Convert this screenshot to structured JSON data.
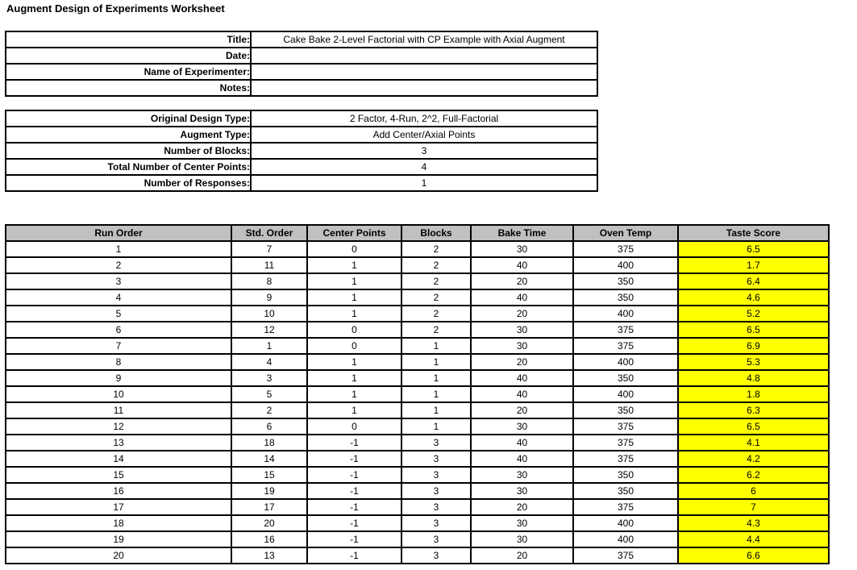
{
  "page_title": "Augment Design of Experiments Worksheet",
  "colors": {
    "header_bg": "#C0C0C0",
    "response_bg": "#FFFF00",
    "border": "#000000",
    "background": "#FFFFFF"
  },
  "info_table": {
    "rows": [
      {
        "label": "Title:",
        "value": "Cake Bake 2-Level Factorial with CP Example with Axial Augment"
      },
      {
        "label": "Date:",
        "value": ""
      },
      {
        "label": "Name of Experimenter:",
        "value": ""
      },
      {
        "label": "Notes:",
        "value": ""
      }
    ]
  },
  "design_table": {
    "rows": [
      {
        "label": "Original Design Type:",
        "value": "2 Factor, 4-Run, 2^2, Full-Factorial"
      },
      {
        "label": "Augment Type:",
        "value": "Add Center/Axial Points"
      },
      {
        "label": "Number of Blocks:",
        "value": "3"
      },
      {
        "label": "Total Number of Center Points:",
        "value": "4"
      },
      {
        "label": "Number of Responses:",
        "value": "1"
      }
    ]
  },
  "runs_table": {
    "columns": [
      "Run Order",
      "Std. Order",
      "Center Points",
      "Blocks",
      "Bake Time",
      "Oven Temp",
      "Taste Score"
    ],
    "rows": [
      [
        "1",
        "7",
        "0",
        "2",
        "30",
        "375",
        "6.5"
      ],
      [
        "2",
        "11",
        "1",
        "2",
        "40",
        "400",
        "1.7"
      ],
      [
        "3",
        "8",
        "1",
        "2",
        "20",
        "350",
        "6.4"
      ],
      [
        "4",
        "9",
        "1",
        "2",
        "40",
        "350",
        "4.6"
      ],
      [
        "5",
        "10",
        "1",
        "2",
        "20",
        "400",
        "5.2"
      ],
      [
        "6",
        "12",
        "0",
        "2",
        "30",
        "375",
        "6.5"
      ],
      [
        "7",
        "1",
        "0",
        "1",
        "30",
        "375",
        "6.9"
      ],
      [
        "8",
        "4",
        "1",
        "1",
        "20",
        "400",
        "5.3"
      ],
      [
        "9",
        "3",
        "1",
        "1",
        "40",
        "350",
        "4.8"
      ],
      [
        "10",
        "5",
        "1",
        "1",
        "40",
        "400",
        "1.8"
      ],
      [
        "11",
        "2",
        "1",
        "1",
        "20",
        "350",
        "6.3"
      ],
      [
        "12",
        "6",
        "0",
        "1",
        "30",
        "375",
        "6.5"
      ],
      [
        "13",
        "18",
        "-1",
        "3",
        "40",
        "375",
        "4.1"
      ],
      [
        "14",
        "14",
        "-1",
        "3",
        "40",
        "375",
        "4.2"
      ],
      [
        "15",
        "15",
        "-1",
        "3",
        "30",
        "350",
        "6.2"
      ],
      [
        "16",
        "19",
        "-1",
        "3",
        "30",
        "350",
        "6"
      ],
      [
        "17",
        "17",
        "-1",
        "3",
        "20",
        "375",
        "7"
      ],
      [
        "18",
        "20",
        "-1",
        "3",
        "30",
        "400",
        "4.3"
      ],
      [
        "19",
        "16",
        "-1",
        "3",
        "30",
        "400",
        "4.4"
      ],
      [
        "20",
        "13",
        "-1",
        "3",
        "20",
        "375",
        "6.6"
      ]
    ]
  }
}
